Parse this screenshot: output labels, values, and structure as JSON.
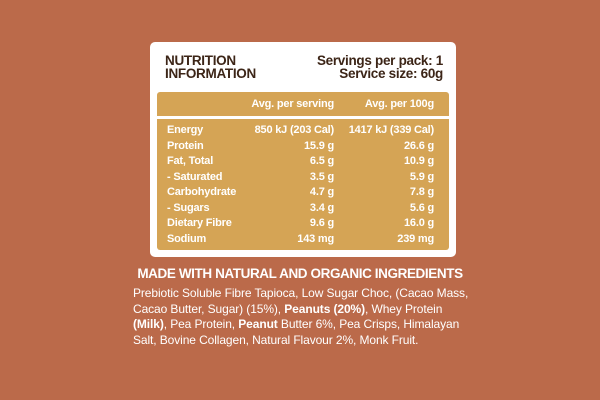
{
  "colors": {
    "bg": "#BB6A4A",
    "panel": "#FFFFFF",
    "gold": "#D5A455",
    "brown": "#3C2517",
    "light": "#FFFFFF"
  },
  "panel": {
    "title_line1": "NUTRITION",
    "title_line2": "INFORMATION",
    "servings_per_pack": "Servings per pack: 1",
    "service_size": "Service size: 60g"
  },
  "table": {
    "columns": [
      "Avg. per serving",
      "Avg. per 100g"
    ],
    "rows": [
      {
        "label": "Energy",
        "per_serving": "850 kJ (203 Cal)",
        "per_100g": "1417 kJ (339 Cal)"
      },
      {
        "label": "Protein",
        "per_serving": "15.9 g",
        "per_100g": "26.6 g"
      },
      {
        "label": "Fat, Total",
        "per_serving": "6.5 g",
        "per_100g": "10.9 g"
      },
      {
        "label": "- Saturated",
        "per_serving": "3.5 g",
        "per_100g": "5.9 g"
      },
      {
        "label": "Carbohydrate",
        "per_serving": "4.7 g",
        "per_100g": "7.8 g"
      },
      {
        "label": "- Sugars",
        "per_serving": "3.4 g",
        "per_100g": "5.6 g"
      },
      {
        "label": "Dietary Fibre",
        "per_serving": "9.6 g",
        "per_100g": "16.0 g"
      },
      {
        "label": "Sodium",
        "per_serving": "143 mg",
        "per_100g": "239 mg"
      }
    ]
  },
  "footer": {
    "heading": "MADE WITH NATURAL AND ORGANIC INGREDIENTS",
    "ingredients_lines": [
      [
        {
          "text": "Prebiotic Soluble Fibre Tapioca, Low Sugar Choc, (Cacao Mass,",
          "bold": false
        }
      ],
      [
        {
          "text": "Cacao Butter, Sugar) (15%), ",
          "bold": false
        },
        {
          "text": "Peanuts (20%)",
          "bold": true
        },
        {
          "text": ", Whey Protein",
          "bold": false
        }
      ],
      [
        {
          "text": "(Milk)",
          "bold": true
        },
        {
          "text": ", Pea Protein, ",
          "bold": false
        },
        {
          "text": "Peanut",
          "bold": true
        },
        {
          "text": " Butter 6%, Pea Crisps, Himalayan",
          "bold": false
        }
      ],
      [
        {
          "text": "Salt, Bovine Collagen, Natural Flavour 2%, Monk Fruit.",
          "bold": false
        }
      ]
    ]
  }
}
